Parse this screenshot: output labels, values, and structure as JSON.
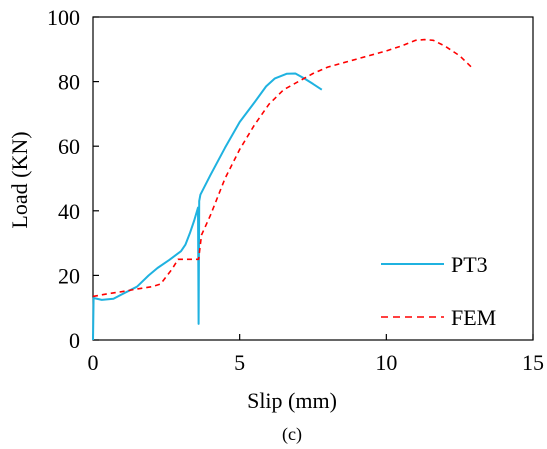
{
  "chart_data": {
    "type": "line",
    "xlabel": "Slip (mm)",
    "ylabel": "Load (KN)",
    "caption": "(c)",
    "xlim": [
      0,
      15
    ],
    "ylim": [
      0,
      100
    ],
    "xticks": [
      0,
      5,
      10,
      15
    ],
    "yticks": [
      0,
      20,
      40,
      60,
      80,
      100
    ],
    "grid": false,
    "legend_position": "bottom-right",
    "series": [
      {
        "name": "PT3",
        "color": "#1fb2e0",
        "dash": "solid",
        "points": [
          [
            0,
            0
          ],
          [
            0.02,
            13
          ],
          [
            0.3,
            12.4
          ],
          [
            0.7,
            12.8
          ],
          [
            1.0,
            14.2
          ],
          [
            1.5,
            16.5
          ],
          [
            1.9,
            20.0
          ],
          [
            2.2,
            22.3
          ],
          [
            2.6,
            24.8
          ],
          [
            3.0,
            27.5
          ],
          [
            3.15,
            29.5
          ],
          [
            3.3,
            33.0
          ],
          [
            3.45,
            37.0
          ],
          [
            3.58,
            41.0
          ],
          [
            3.6,
            5.0
          ],
          [
            3.62,
            43.0
          ],
          [
            3.66,
            45.0
          ],
          [
            4.0,
            51.0
          ],
          [
            4.5,
            59.5
          ],
          [
            5.0,
            67.5
          ],
          [
            5.5,
            73.5
          ],
          [
            5.9,
            78.5
          ],
          [
            6.2,
            81.0
          ],
          [
            6.6,
            82.4
          ],
          [
            6.9,
            82.5
          ],
          [
            7.2,
            81.0
          ],
          [
            7.5,
            79.3
          ],
          [
            7.8,
            77.5
          ]
        ]
      },
      {
        "name": "FEM",
        "color": "#ff0000",
        "dash": "dashed",
        "points": [
          [
            0,
            13.5
          ],
          [
            0.5,
            14.3
          ],
          [
            1.0,
            15.0
          ],
          [
            1.5,
            15.8
          ],
          [
            2.0,
            16.5
          ],
          [
            2.3,
            17.3
          ],
          [
            2.7,
            22.0
          ],
          [
            2.9,
            25.0
          ],
          [
            3.3,
            25.0
          ],
          [
            3.6,
            25.0
          ],
          [
            3.7,
            32.5
          ],
          [
            4.0,
            38.5
          ],
          [
            4.5,
            50.0
          ],
          [
            5.0,
            59.0
          ],
          [
            5.5,
            66.5
          ],
          [
            6.0,
            73.0
          ],
          [
            6.5,
            77.5
          ],
          [
            7.0,
            80.0
          ],
          [
            7.5,
            82.5
          ],
          [
            8.0,
            84.5
          ],
          [
            9.0,
            87.0
          ],
          [
            10.0,
            89.5
          ],
          [
            10.5,
            91.0
          ],
          [
            11.0,
            92.8
          ],
          [
            11.3,
            93.0
          ],
          [
            11.6,
            92.8
          ],
          [
            12.0,
            91.0
          ],
          [
            12.5,
            88.0
          ],
          [
            12.9,
            84.5
          ]
        ]
      }
    ]
  }
}
